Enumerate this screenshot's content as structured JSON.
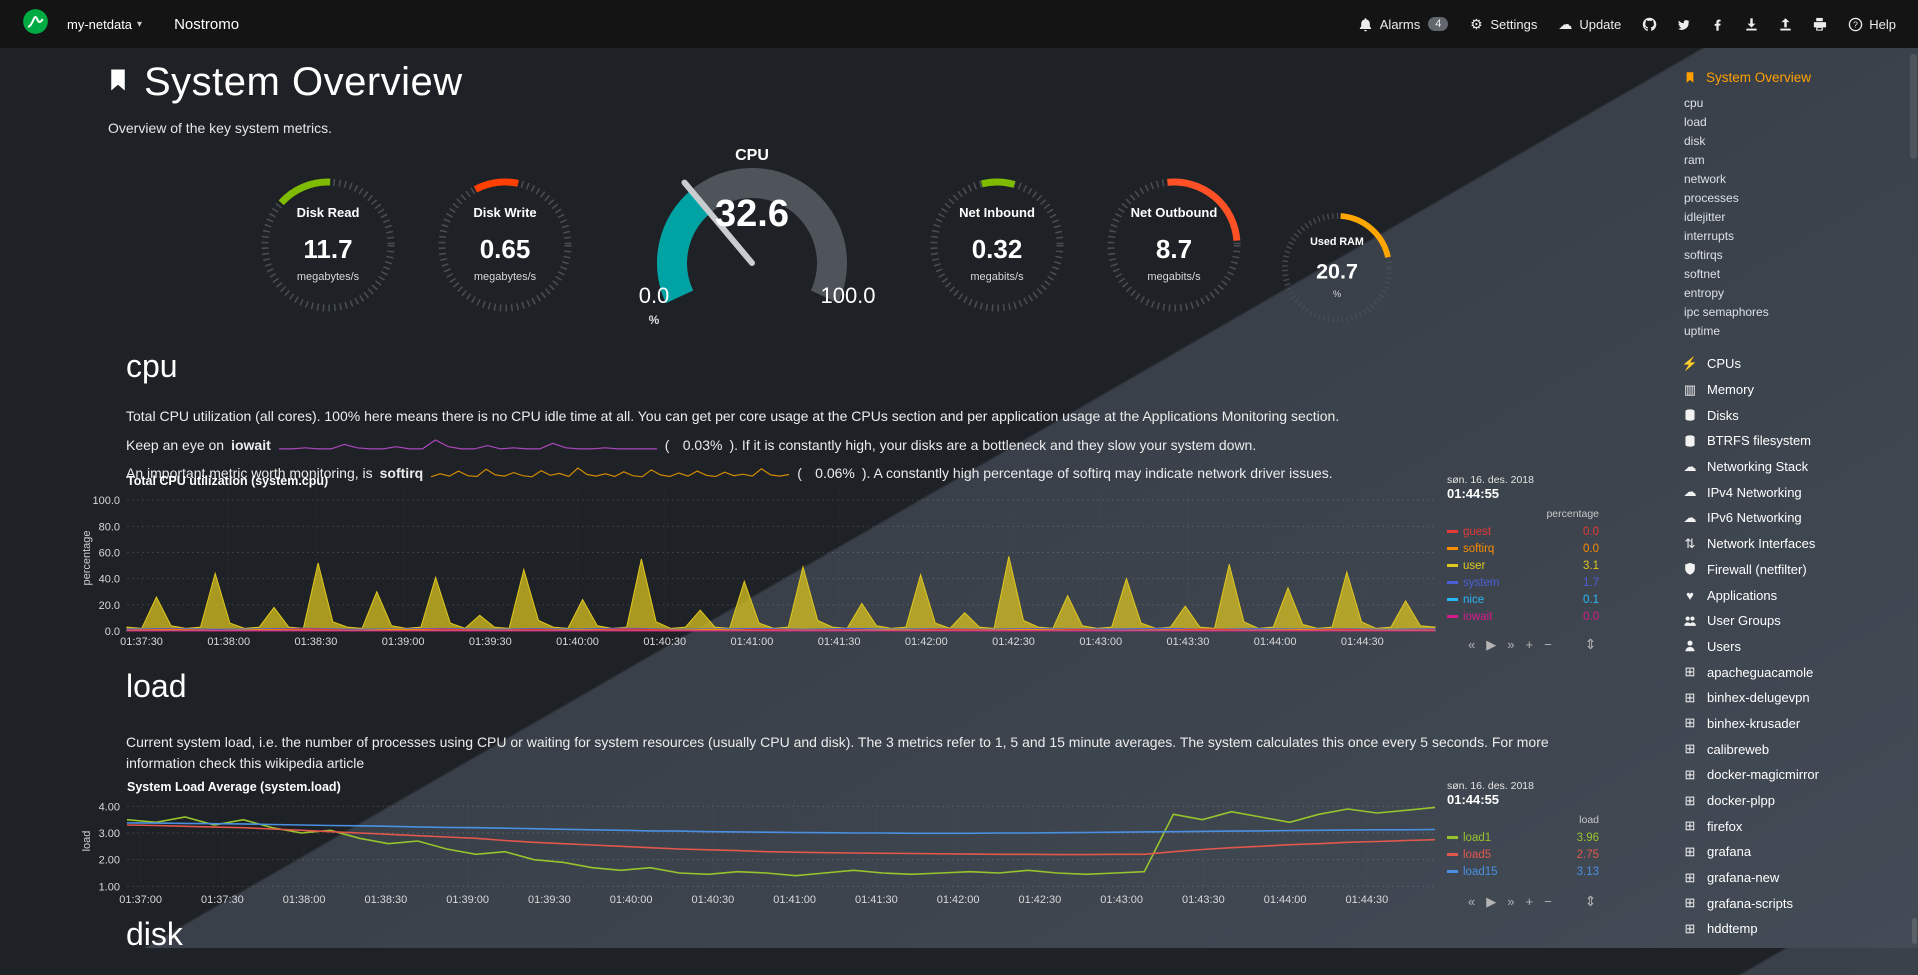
{
  "navbar": {
    "brand": "my-netdata",
    "hostname": "Nostromo",
    "alarms_label": "Alarms",
    "alarms_badge": "4",
    "settings_label": "Settings",
    "update_label": "Update",
    "help_label": "Help",
    "social_icons": [
      "github-icon",
      "twitter-icon",
      "facebook-icon",
      "download-icon",
      "upload-icon",
      "print-icon"
    ]
  },
  "header": {
    "title": "System Overview",
    "subtitle": "Overview of the key system metrics."
  },
  "gauges": {
    "small": [
      {
        "label": "Disk Read",
        "value": "11.7",
        "unit": "megabytes/s",
        "arc_color": "#7fbb00",
        "arc_start": -48,
        "arc_end": 2
      },
      {
        "label": "Disk Write",
        "value": "0.65",
        "unit": "megabytes/s",
        "arc_color": "#ff4000",
        "arc_start": -28,
        "arc_end": 12
      },
      {
        "label": "Net Inbound",
        "value": "0.32",
        "unit": "megabits/s",
        "arc_color": "#7fbb00",
        "arc_start": -14,
        "arc_end": 16
      },
      {
        "label": "Net Outbound",
        "value": "8.7",
        "unit": "megabits/s",
        "arc_color": "#ff5026",
        "arc_start": -6,
        "arc_end": 86
      },
      {
        "label": "Used RAM",
        "value": "20.7",
        "unit": "%",
        "arc_color": "#ffa700",
        "arc_start": 4,
        "arc_end": 78
      }
    ],
    "cpu": {
      "title": "CPU",
      "value": "32.6",
      "min": "0.0",
      "max": "100.0",
      "unit": "%",
      "percent": 32.6,
      "fill_color": "#00a3a3",
      "track_color": "#4f545a",
      "needle_color": "#c9cdd0"
    }
  },
  "cpu_section": {
    "title": "cpu",
    "p1": "Total CPU utilization (all cores). 100% here means there is no CPU idle time at all. You can get per core usage at the CPUs section and per application usage at the Applications Monitoring section.",
    "iowait_pre": "Keep an eye on",
    "iowait_term": "iowait",
    "paren_open": "(",
    "iowait_value": "0.03%",
    "iowait_post": "). If it is constantly high, your disks are a bottleneck and they slow your system down.",
    "softirq_pre": "An important metric worth monitoring, is",
    "softirq_term": "softirq",
    "softirq_value": "0.06%",
    "softirq_post": "). A constantly high percentage of softirq may indicate network driver issues."
  },
  "sparklines": {
    "iowait": {
      "color": "#ab47bc",
      "values": [
        0.1,
        0.1,
        0.2,
        0.1,
        0.1,
        0.5,
        0.2,
        0.1,
        0.1,
        0.3,
        0.1,
        0.1,
        0.9,
        0.3,
        0.1,
        0.1,
        0.4,
        0.1,
        0.2,
        0.1,
        0.1,
        0.6,
        0.2,
        0.1,
        0.1,
        0.2,
        0.1,
        0.1,
        0.1,
        0.1
      ]
    },
    "softirq": {
      "color": "#cf8a00",
      "values": [
        0.3,
        1.1,
        0.5,
        1.8,
        0.6,
        0.4,
        2.3,
        0.8,
        0.5,
        1.4,
        0.6,
        0.3,
        1.9,
        0.7,
        1.2,
        0.4,
        2.6,
        0.9,
        0.5,
        1.1,
        0.4,
        1.6,
        0.6,
        0.3,
        2.1,
        0.8,
        0.4,
        1.3,
        0.5,
        1.8,
        0.7,
        0.4,
        1.5,
        0.6,
        1.0,
        0.5,
        2.4,
        0.8,
        0.5,
        0.9
      ]
    }
  },
  "charts": {
    "cpu": {
      "title": "Total CPU utilization (system.cpu)",
      "date": "søn. 16. des. 2018",
      "time": "01:44:55",
      "legend_header": "percentage",
      "ylabel": "percentage",
      "y_ticks": [
        "100.0",
        "80.0",
        "60.0",
        "40.0",
        "20.0",
        "0.0"
      ],
      "x_ticks": [
        "01:37:30",
        "01:38:00",
        "01:38:30",
        "01:39:00",
        "01:39:30",
        "01:40:00",
        "01:40:30",
        "01:41:00",
        "01:41:30",
        "01:42:00",
        "01:42:30",
        "01:43:00",
        "01:43:30",
        "01:44:00",
        "01:44:30"
      ],
      "series": [
        {
          "name": "guest",
          "value": "0.0",
          "color": "#e53935",
          "values": [
            0.8,
            1.4,
            0.6,
            1.1,
            1.7,
            0.7,
            1.0,
            1.5,
            0.6,
            1.2,
            0.8,
            1.6,
            0.9,
            0.6,
            1.3,
            0.8,
            1.1,
            0.5,
            1.4,
            0.9,
            0.7,
            1.2,
            0.6,
            1.0,
            1.5,
            0.7,
            0.9,
            1.3,
            0.6,
            1.0
          ]
        },
        {
          "name": "softirq",
          "value": "0.0",
          "color": "#fb8c00",
          "values": [
            0.4,
            0.9,
            0.3,
            1.1,
            0.5,
            0.4,
            1.3,
            0.4,
            0.7,
            0.3,
            0.9,
            0.4,
            0.5,
            1.2,
            0.3,
            0.6,
            0.4,
            1.0,
            0.4,
            0.6,
            1.4,
            0.4,
            0.3,
            0.8,
            0.4,
            0.5,
            1.1,
            0.4,
            0.7,
            0.4
          ]
        },
        {
          "name": "user",
          "value": "3.1",
          "color": "#e0c81e",
          "values": [
            3,
            2,
            26,
            4,
            2,
            3,
            44,
            6,
            2,
            3,
            18,
            3,
            2,
            52,
            7,
            3,
            2,
            30,
            4,
            2,
            3,
            41,
            6,
            2,
            12,
            3,
            2,
            47,
            8,
            3,
            2,
            24,
            4,
            2,
            3,
            55,
            7,
            2,
            3,
            16,
            3,
            2,
            38,
            6,
            2,
            3,
            49,
            8,
            3,
            2,
            21,
            4,
            2,
            3,
            43,
            6,
            2,
            14,
            3,
            2,
            57,
            8,
            3,
            2,
            27,
            4,
            2,
            3,
            40,
            6,
            2,
            3,
            19,
            3,
            2,
            51,
            7,
            2,
            3,
            33,
            5,
            2,
            3,
            45,
            7,
            2,
            3,
            23,
            4,
            3
          ]
        },
        {
          "name": "system",
          "value": "1.7",
          "color": "#4a5fd8",
          "values": [
            1.5,
            1.9,
            1.3,
            1.7,
            2.1,
            1.4,
            1.6,
            2.0,
            1.3,
            1.8,
            1.5,
            2.2,
            1.4,
            1.6,
            1.9,
            1.4,
            2.0,
            1.5,
            1.7,
            1.3,
            1.9,
            1.5,
            1.6,
            2.1,
            1.4,
            1.8,
            1.5,
            1.7,
            1.4,
            1.7
          ]
        },
        {
          "name": "nice",
          "value": "0.1",
          "color": "#29b6f6",
          "values": [
            0.1,
            0.15,
            0.1,
            0.12,
            0.1,
            0.14,
            0.1,
            0.12,
            0.1,
            0.1
          ]
        },
        {
          "name": "iowait",
          "value": "0.0",
          "color": "#d81b8c",
          "values": [
            0,
            0.1,
            0,
            0.05,
            0.1,
            0,
            0.08,
            0,
            0.1,
            0
          ]
        }
      ]
    },
    "load": {
      "title": "System Load Average (system.load)",
      "date": "søn. 16. des. 2018",
      "time": "01:44:55",
      "legend_header": "load",
      "ylabel": "load",
      "y_ticks": [
        "4.00",
        "3.00",
        "2.00",
        "1.00"
      ],
      "x_ticks": [
        "01:37:00",
        "01:37:30",
        "01:38:00",
        "01:38:30",
        "01:39:00",
        "01:39:30",
        "01:40:00",
        "01:40:30",
        "01:41:00",
        "01:41:30",
        "01:42:00",
        "01:42:30",
        "01:43:00",
        "01:43:30",
        "01:44:00",
        "01:44:30"
      ],
      "series": [
        {
          "name": "load1",
          "value": "3.96",
          "color": "#97c42c",
          "values": [
            3.5,
            3.4,
            3.6,
            3.3,
            3.5,
            3.2,
            3.0,
            3.1,
            2.8,
            2.6,
            2.7,
            2.4,
            2.2,
            2.3,
            2.0,
            1.9,
            1.7,
            1.6,
            1.7,
            1.5,
            1.45,
            1.55,
            1.5,
            1.4,
            1.5,
            1.6,
            1.5,
            1.45,
            1.5,
            1.55,
            1.5,
            1.6,
            1.5,
            1.45,
            1.5,
            1.55,
            3.7,
            3.5,
            3.8,
            3.6,
            3.4,
            3.7,
            3.9,
            3.75,
            3.85,
            3.96
          ]
        },
        {
          "name": "load5",
          "value": "2.75",
          "color": "#e2574c",
          "values": [
            3.3,
            3.28,
            3.25,
            3.22,
            3.2,
            3.15,
            3.1,
            3.05,
            3.0,
            2.95,
            2.9,
            2.85,
            2.8,
            2.72,
            2.65,
            2.6,
            2.55,
            2.5,
            2.45,
            2.4,
            2.37,
            2.34,
            2.3,
            2.28,
            2.26,
            2.25,
            2.24,
            2.23,
            2.22,
            2.21,
            2.2,
            2.2,
            2.19,
            2.19,
            2.2,
            2.2,
            2.3,
            2.38,
            2.45,
            2.5,
            2.56,
            2.6,
            2.65,
            2.68,
            2.72,
            2.75
          ]
        },
        {
          "name": "load15",
          "value": "3.13",
          "color": "#4a90e2",
          "values": [
            3.38,
            3.37,
            3.36,
            3.35,
            3.34,
            3.32,
            3.3,
            3.28,
            3.27,
            3.25,
            3.23,
            3.21,
            3.2,
            3.18,
            3.16,
            3.14,
            3.12,
            3.1,
            3.08,
            3.07,
            3.05,
            3.04,
            3.03,
            3.02,
            3.01,
            3.0,
            3.0,
            2.99,
            2.99,
            2.99,
            3.0,
            3.0,
            3.01,
            3.02,
            3.03,
            3.04,
            3.05,
            3.06,
            3.07,
            3.08,
            3.09,
            3.1,
            3.11,
            3.12,
            3.12,
            3.13
          ]
        }
      ]
    }
  },
  "load_section": {
    "title": "load",
    "p1": "Current system load, i.e. the number of processes using CPU or waiting for system resources (usually CPU and disk). The 3 metrics refer to 1, 5 and 15 minute averages. The system calculates this once every 5 seconds. For more information check this wikipedia article"
  },
  "disk_section": {
    "title": "disk"
  },
  "chart_toolbar": {
    "pan_backward": "«",
    "play": "▶",
    "pan_forward": "»",
    "zoom_in": "+",
    "zoom_out": "−",
    "resize": "⇕"
  },
  "sidebar": {
    "active_label": "System Overview",
    "sub_items": [
      "cpu",
      "load",
      "disk",
      "ram",
      "network",
      "processes",
      "idlejitter",
      "interrupts",
      "softirqs",
      "softnet",
      "entropy",
      "ipc semaphores",
      "uptime"
    ],
    "menu_items": [
      {
        "icon": "bolt-icon",
        "label": "CPUs"
      },
      {
        "icon": "memory-icon",
        "label": "Memory"
      },
      {
        "icon": "disk-icon",
        "label": "Disks"
      },
      {
        "icon": "disk-icon",
        "label": "BTRFS filesystem"
      },
      {
        "icon": "cloud-icon",
        "label": "Networking Stack"
      },
      {
        "icon": "cloud-icon",
        "label": "IPv4 Networking"
      },
      {
        "icon": "cloud-icon",
        "label": "IPv6 Networking"
      },
      {
        "icon": "network-icon",
        "label": "Network Interfaces"
      },
      {
        "icon": "shield-icon",
        "label": "Firewall (netfilter)"
      },
      {
        "icon": "apps-icon",
        "label": "Applications"
      },
      {
        "icon": "group-icon",
        "label": "User Groups"
      },
      {
        "icon": "user-icon",
        "label": "Users"
      },
      {
        "icon": "grid-icon",
        "label": "apacheguacamole"
      },
      {
        "icon": "grid-icon",
        "label": "binhex-delugevpn"
      },
      {
        "icon": "grid-icon",
        "label": "binhex-krusader"
      },
      {
        "icon": "grid-icon",
        "label": "calibreweb"
      },
      {
        "icon": "grid-icon",
        "label": "docker-magicmirror"
      },
      {
        "icon": "grid-icon",
        "label": "docker-plpp"
      },
      {
        "icon": "grid-icon",
        "label": "firefox"
      },
      {
        "icon": "grid-icon",
        "label": "grafana"
      },
      {
        "icon": "grid-icon",
        "label": "grafana-new"
      },
      {
        "icon": "grid-icon",
        "label": "grafana-scripts"
      },
      {
        "icon": "grid-icon",
        "label": "hddtemp"
      }
    ]
  }
}
